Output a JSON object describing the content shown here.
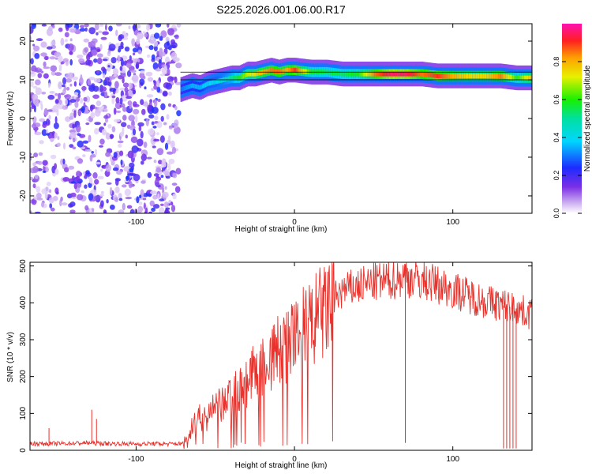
{
  "title": "S225.2026.001.06.00.R17",
  "chart_data": [
    {
      "type": "heatmap",
      "xlabel": "Height of straight line (km)",
      "ylabel": "Frequency (Hz)",
      "xlim": [
        -167,
        150
      ],
      "ylim": [
        -24.5,
        24.5
      ],
      "xticks": [
        -100,
        0,
        100
      ],
      "yticks": [
        -20,
        -10,
        0,
        10,
        20
      ],
      "noise_region_x": [
        -167,
        -73
      ],
      "ridge": {
        "x": [
          -72,
          -65,
          -60,
          -55,
          -50,
          -45,
          -40,
          -35,
          -30,
          -25,
          -20,
          -15,
          -10,
          -5,
          0,
          10,
          20,
          30,
          40,
          50,
          60,
          70,
          80,
          90,
          100,
          110,
          120,
          130,
          140,
          150
        ],
        "freq": [
          7.5,
          8.5,
          8,
          9,
          9.5,
          10,
          10.5,
          10.5,
          11.5,
          11.5,
          12,
          12.5,
          12,
          12.5,
          12.5,
          12,
          12,
          11.5,
          11.5,
          11.5,
          11.5,
          11.5,
          11.5,
          11,
          11,
          11,
          11,
          11,
          10.5,
          10.5
        ],
        "amplitude": [
          0.3,
          0.35,
          0.35,
          0.4,
          0.4,
          0.45,
          0.5,
          0.6,
          0.7,
          0.75,
          0.8,
          0.85,
          0.85,
          0.8,
          0.9,
          0.6,
          0.55,
          0.55,
          0.6,
          0.85,
          0.95,
          0.95,
          0.85,
          0.9,
          0.8,
          0.75,
          0.75,
          0.85,
          0.6,
          0.8
        ]
      },
      "reference_line_freq": [
        12,
        10
      ],
      "colorbar": {
        "label": "Normalized spectral amplitude",
        "range": [
          0,
          1
        ],
        "ticks": [
          "0.0",
          "0.2",
          "0.4",
          "0.6",
          "0.8"
        ]
      }
    },
    {
      "type": "line",
      "xlabel": "Height of straight line (km)",
      "ylabel": "SNR (10 * v/v)",
      "xlim": [
        -167,
        150
      ],
      "ylim": [
        0,
        510
      ],
      "xticks": [
        -100,
        0,
        100
      ],
      "yticks": [
        0,
        100,
        200,
        300,
        400,
        500
      ],
      "series": [
        {
          "color": "#e8312b",
          "x": [
            -167,
            -150,
            -140,
            -130,
            -120,
            -110,
            -100,
            -90,
            -80,
            -70,
            -66,
            -60,
            -55,
            -50,
            -45,
            -40,
            -35,
            -30,
            -25,
            -20,
            -15,
            -10,
            -5,
            0,
            5,
            10,
            15,
            20,
            25,
            30,
            40,
            50,
            60,
            70,
            80,
            90,
            100,
            110,
            120,
            130,
            135,
            140,
            145,
            150
          ],
          "y": [
            18,
            18,
            19,
            20,
            18,
            18,
            17,
            18,
            17,
            18,
            60,
            85,
            95,
            110,
            125,
            145,
            165,
            185,
            210,
            230,
            250,
            270,
            285,
            300,
            320,
            340,
            360,
            380,
            410,
            430,
            445,
            455,
            460,
            470,
            460,
            450,
            435,
            420,
            405,
            395,
            390,
            385,
            375,
            370
          ]
        }
      ],
      "spikes": [
        {
          "x": -155,
          "y": 60
        },
        {
          "x": -128,
          "y": 110
        },
        {
          "x": -125,
          "y": 85
        },
        {
          "x": 70,
          "y": 505
        }
      ],
      "dropouts": {
        "x": [
          132,
          134,
          136,
          138,
          140
        ],
        "y": 5
      }
    }
  ]
}
